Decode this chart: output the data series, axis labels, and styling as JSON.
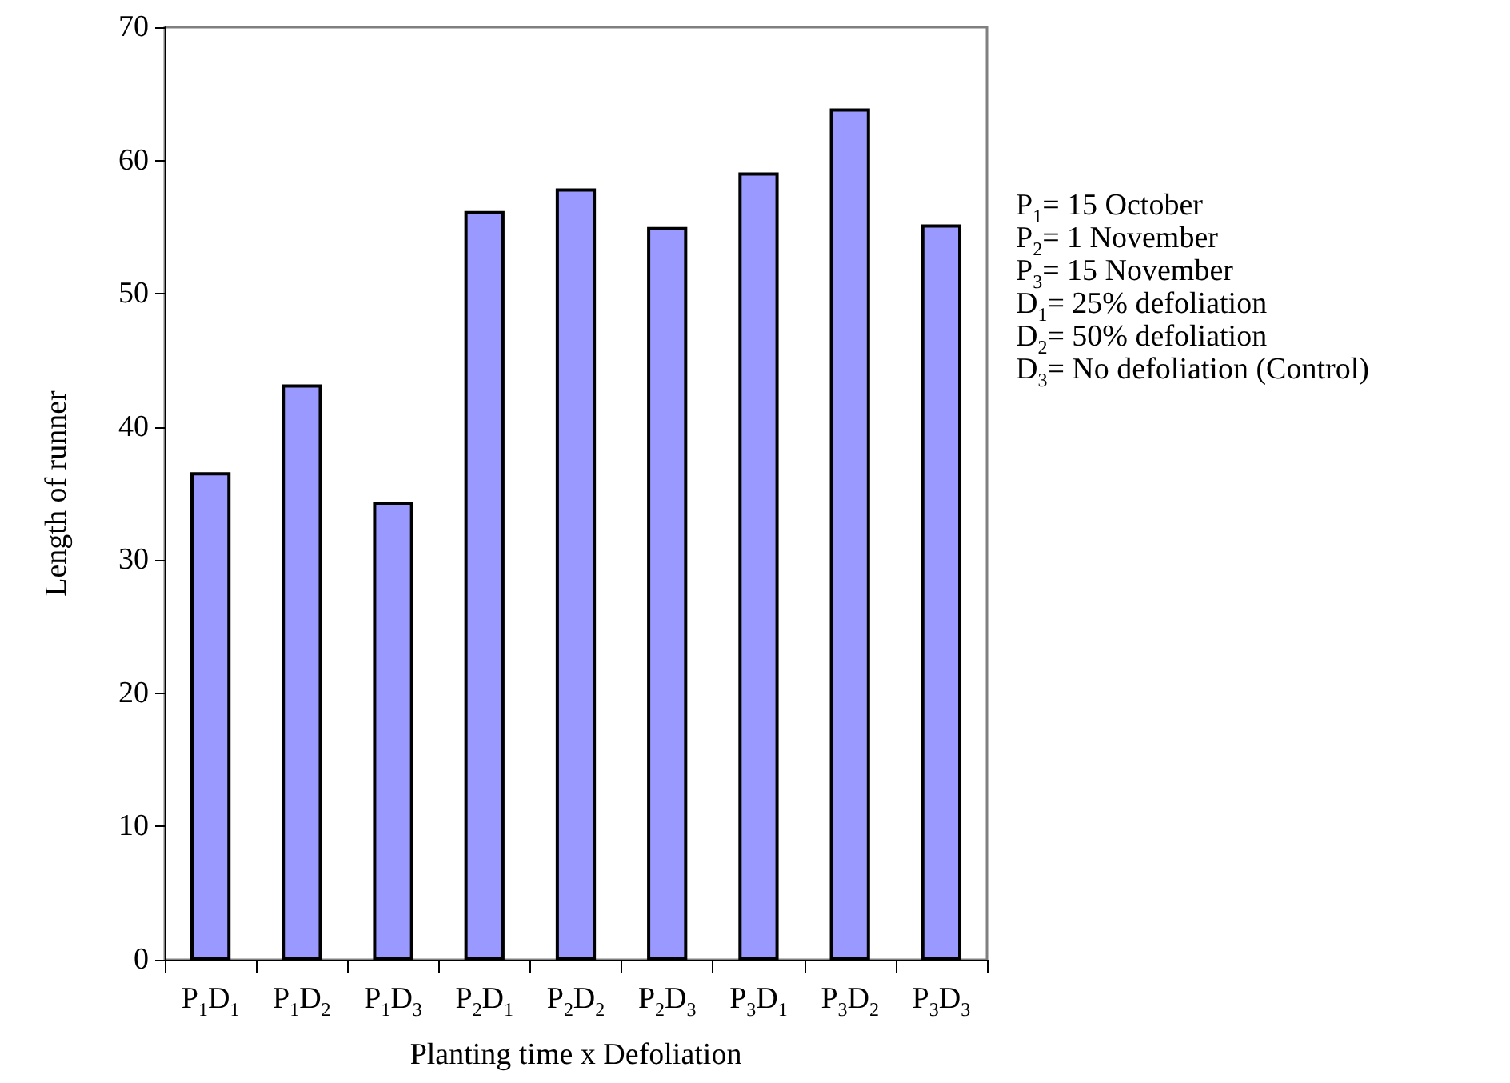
{
  "chart_data": {
    "type": "bar",
    "xlabel": "Planting time x Defoliation",
    "ylabel": "Length of runner",
    "categories": [
      "P$_{1}$D$_{1}$",
      "P$_{1}$D$_{2}$",
      "P$_{1}$D$_{3}$",
      "P$_{2}$D$_{1}$",
      "P$_{2}$D$_{2}$",
      "P$_{2}$D$_{3}$",
      "P$_{3}$D$_{1}$",
      "P$_{3}$D$_{2}$",
      "P$_{3}$D$_{3}$"
    ],
    "values": [
      36.6,
      43.2,
      34.4,
      56.2,
      57.9,
      55.0,
      59.1,
      63.9,
      55.2
    ],
    "color": "#9999ff",
    "ylim": [
      0,
      70
    ],
    "yticks": [
      0,
      10,
      20,
      30,
      40,
      50,
      60,
      70
    ],
    "grid": false,
    "annotations": [
      "P$_{1}$= 15 October",
      "P$_{2}$= 1 November",
      "P$_{3}$= 15 November",
      "D$_{1}$= 25% defoliation",
      "D$_{2}$= 50% defoliation",
      "D$_{3}$= No defoliation (Control)"
    ]
  }
}
